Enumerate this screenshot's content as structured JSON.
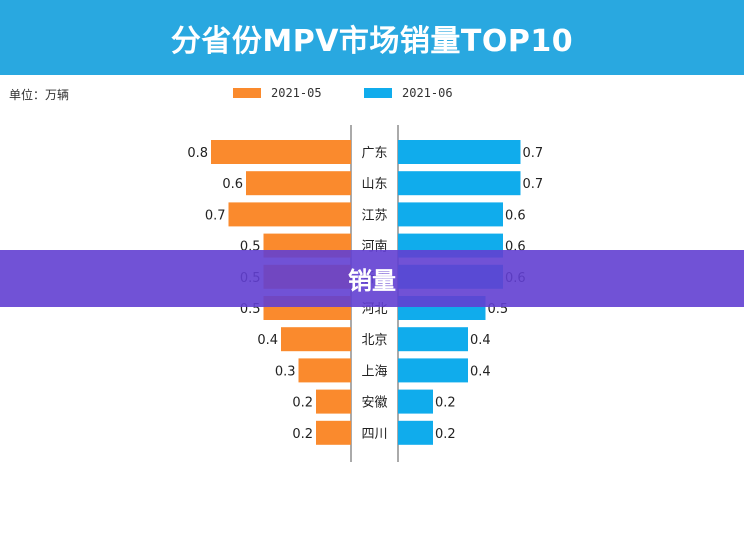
{
  "header": {
    "title": "分省份MPV市场销量TOP10"
  },
  "unit_label": "单位：万辆",
  "banner": {
    "text": "销量"
  },
  "colors": {
    "left": "#fa8a2d",
    "right": "#10acec",
    "title_bg": "#29a8e0",
    "banner": "#6b44d9"
  },
  "chart_data": {
    "type": "bar",
    "orientation": "horizontal-butterfly",
    "categories": [
      "广东",
      "山东",
      "江苏",
      "河南",
      "浙江",
      "河北",
      "北京",
      "上海",
      "安徽",
      "四川"
    ],
    "series": [
      {
        "name": "2021-05",
        "values": [
          0.8,
          0.6,
          0.7,
          0.5,
          0.5,
          0.5,
          0.4,
          0.3,
          0.2,
          0.2
        ]
      },
      {
        "name": "2021-06",
        "values": [
          0.7,
          0.7,
          0.6,
          0.6,
          0.6,
          0.5,
          0.4,
          0.4,
          0.2,
          0.2
        ]
      }
    ],
    "title": "分省份MPV市场销量TOP10",
    "xlabel": "",
    "ylabel": "单位：万辆",
    "xlim": [
      0,
      0.8
    ],
    "legend": "top-center",
    "grid": false
  }
}
